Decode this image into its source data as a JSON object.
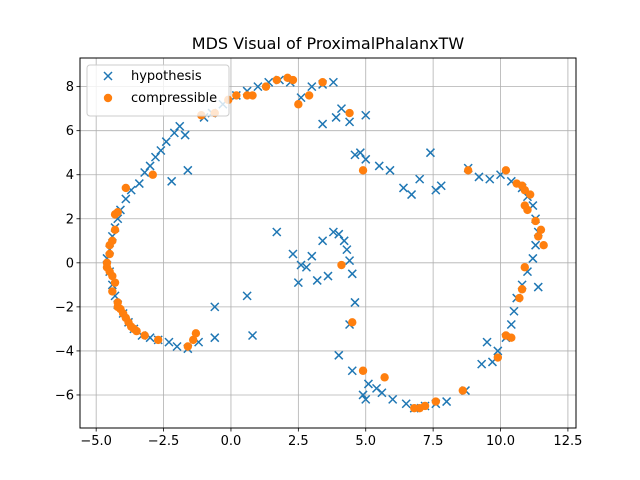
{
  "chart_data": {
    "type": "scatter",
    "title": "MDS Visual of ProximalPhalanxTW",
    "xlabel": "",
    "ylabel": "",
    "xlim": [
      -5.6,
      12.8
    ],
    "ylim": [
      -7.5,
      9.3
    ],
    "xticks": [
      -5.0,
      -2.5,
      0.0,
      2.5,
      5.0,
      7.5,
      10.0,
      12.5
    ],
    "xtick_labels": [
      "−5.0",
      "−2.5",
      "0.0",
      "2.5",
      "5.0",
      "7.5",
      "10.0",
      "12.5"
    ],
    "yticks": [
      -6,
      -4,
      -2,
      0,
      2,
      4,
      6,
      8
    ],
    "ytick_labels": [
      "−6",
      "−4",
      "−2",
      "0",
      "2",
      "4",
      "6",
      "8"
    ],
    "grid": true,
    "legend_position": "top-left",
    "series": [
      {
        "name": "hypothesis",
        "marker": "x",
        "color": "#1f77b4",
        "points": [
          [
            -4.6,
            0.2
          ],
          [
            -4.5,
            0.6
          ],
          [
            -4.5,
            -0.4
          ],
          [
            -4.4,
            1.2
          ],
          [
            -4.4,
            -1.0
          ],
          [
            -4.3,
            1.6
          ],
          [
            -4.3,
            -1.5
          ],
          [
            -4.2,
            2.0
          ],
          [
            -4.2,
            -1.9
          ],
          [
            -4.1,
            2.4
          ],
          [
            -4.0,
            -2.3
          ],
          [
            -3.9,
            2.9
          ],
          [
            -3.8,
            -2.7
          ],
          [
            -3.7,
            3.3
          ],
          [
            -3.6,
            -3.0
          ],
          [
            -3.4,
            3.6
          ],
          [
            -3.3,
            -3.3
          ],
          [
            -3.2,
            4.1
          ],
          [
            -3.0,
            -3.4
          ],
          [
            -3.0,
            4.4
          ],
          [
            -2.8,
            4.8
          ],
          [
            -2.7,
            -3.5
          ],
          [
            -2.6,
            5.1
          ],
          [
            -2.4,
            5.5
          ],
          [
            -2.3,
            -3.6
          ],
          [
            -2.1,
            5.9
          ],
          [
            -2.0,
            -3.8
          ],
          [
            -1.9,
            6.2
          ],
          [
            -1.7,
            5.8
          ],
          [
            -1.6,
            4.2
          ],
          [
            -2.2,
            3.7
          ],
          [
            -1.6,
            -3.9
          ],
          [
            -1.2,
            -3.6
          ],
          [
            -1.0,
            6.6
          ],
          [
            -0.7,
            6.8
          ],
          [
            -0.6,
            -3.4
          ],
          [
            -0.6,
            -2.0
          ],
          [
            -0.3,
            7.2
          ],
          [
            0.2,
            7.6
          ],
          [
            0.6,
            7.8
          ],
          [
            0.8,
            -3.3
          ],
          [
            0.6,
            -1.5
          ],
          [
            1.0,
            8.0
          ],
          [
            1.4,
            8.2
          ],
          [
            1.8,
            8.3
          ],
          [
            2.2,
            8.2
          ],
          [
            2.6,
            7.5
          ],
          [
            3.0,
            8.0
          ],
          [
            3.4,
            8.1
          ],
          [
            3.8,
            8.2
          ],
          [
            3.4,
            6.3
          ],
          [
            3.9,
            6.6
          ],
          [
            4.1,
            7.0
          ],
          [
            4.4,
            6.4
          ],
          [
            4.6,
            4.9
          ],
          [
            4.8,
            5.0
          ],
          [
            5.0,
            6.7
          ],
          [
            5.0,
            4.7
          ],
          [
            5.5,
            4.4
          ],
          [
            5.9,
            4.2
          ],
          [
            6.4,
            3.4
          ],
          [
            6.7,
            3.1
          ],
          [
            7.0,
            3.8
          ],
          [
            7.4,
            5.0
          ],
          [
            7.6,
            3.3
          ],
          [
            7.8,
            3.5
          ],
          [
            8.8,
            4.3
          ],
          [
            9.2,
            3.9
          ],
          [
            9.6,
            3.8
          ],
          [
            10.0,
            4.0
          ],
          [
            10.4,
            3.7
          ],
          [
            10.8,
            3.4
          ],
          [
            11.0,
            3.0
          ],
          [
            11.2,
            2.6
          ],
          [
            11.3,
            2.0
          ],
          [
            11.4,
            1.4
          ],
          [
            11.3,
            0.8
          ],
          [
            11.2,
            0.2
          ],
          [
            11.0,
            -0.4
          ],
          [
            10.8,
            -1.0
          ],
          [
            11.4,
            -1.1
          ],
          [
            10.6,
            -1.6
          ],
          [
            10.5,
            -2.2
          ],
          [
            10.4,
            -2.8
          ],
          [
            10.2,
            -3.4
          ],
          [
            9.9,
            -4.0
          ],
          [
            9.7,
            -4.5
          ],
          [
            9.3,
            -4.6
          ],
          [
            9.5,
            -3.6
          ],
          [
            8.7,
            -5.8
          ],
          [
            8.0,
            -6.3
          ],
          [
            7.6,
            -6.4
          ],
          [
            7.2,
            -6.5
          ],
          [
            6.8,
            -6.6
          ],
          [
            6.5,
            -6.4
          ],
          [
            6.0,
            -6.2
          ],
          [
            5.6,
            -5.9
          ],
          [
            5.4,
            -5.7
          ],
          [
            5.1,
            -5.5
          ],
          [
            4.9,
            -6.0
          ],
          [
            5.0,
            -6.2
          ],
          [
            4.5,
            -4.9
          ],
          [
            4.0,
            -4.2
          ],
          [
            4.4,
            -2.8
          ],
          [
            4.6,
            -1.8
          ],
          [
            4.5,
            -0.5
          ],
          [
            4.4,
            0.1
          ],
          [
            4.3,
            0.6
          ],
          [
            4.2,
            1.0
          ],
          [
            4.0,
            1.3
          ],
          [
            3.8,
            1.4
          ],
          [
            3.4,
            1.0
          ],
          [
            3.0,
            0.3
          ],
          [
            2.8,
            -0.2
          ],
          [
            2.6,
            -0.1
          ],
          [
            2.3,
            0.4
          ],
          [
            1.7,
            1.4
          ],
          [
            3.6,
            -0.6
          ],
          [
            3.2,
            -0.8
          ],
          [
            2.5,
            -0.9
          ]
        ]
      },
      {
        "name": "compressible",
        "marker": "o",
        "color": "#ff7f0e",
        "points": [
          [
            -4.6,
            0.0
          ],
          [
            -4.6,
            -0.2
          ],
          [
            -4.5,
            0.4
          ],
          [
            -4.5,
            0.8
          ],
          [
            -4.5,
            -0.4
          ],
          [
            -4.4,
            1.0
          ],
          [
            -4.4,
            -0.6
          ],
          [
            -4.3,
            2.2
          ],
          [
            -4.3,
            -0.9
          ],
          [
            -4.2,
            2.3
          ],
          [
            -4.2,
            -1.8
          ],
          [
            -4.1,
            -2.1
          ],
          [
            -4.0,
            -2.3
          ],
          [
            -3.9,
            -2.5
          ],
          [
            -3.8,
            -2.7
          ],
          [
            -3.9,
            3.4
          ],
          [
            -3.7,
            -2.9
          ],
          [
            -3.5,
            -3.1
          ],
          [
            -3.2,
            -3.3
          ],
          [
            -2.9,
            4.0
          ],
          [
            -2.7,
            -3.5
          ],
          [
            -1.6,
            -3.8
          ],
          [
            -1.4,
            -3.5
          ],
          [
            -1.3,
            -3.2
          ],
          [
            -0.6,
            6.8
          ],
          [
            0.6,
            7.6
          ],
          [
            0.8,
            7.6
          ],
          [
            1.3,
            8.0
          ],
          [
            1.7,
            8.3
          ],
          [
            2.1,
            8.4
          ],
          [
            2.3,
            8.3
          ],
          [
            2.5,
            7.2
          ],
          [
            2.9,
            7.6
          ],
          [
            3.4,
            8.2
          ],
          [
            4.4,
            6.8
          ],
          [
            4.9,
            4.2
          ],
          [
            8.8,
            4.2
          ],
          [
            10.2,
            4.2
          ],
          [
            10.6,
            3.6
          ],
          [
            10.9,
            3.3
          ],
          [
            11.1,
            3.1
          ],
          [
            10.9,
            2.6
          ],
          [
            11.3,
            1.9
          ],
          [
            11.5,
            1.5
          ],
          [
            11.6,
            0.8
          ],
          [
            10.9,
            -0.2
          ],
          [
            10.8,
            -1.2
          ],
          [
            10.7,
            -1.6
          ],
          [
            10.4,
            -3.4
          ],
          [
            10.2,
            -3.3
          ],
          [
            9.9,
            -4.3
          ],
          [
            8.6,
            -5.8
          ],
          [
            7.6,
            -6.3
          ],
          [
            7.2,
            -6.5
          ],
          [
            7.0,
            -6.6
          ],
          [
            6.8,
            -6.6
          ],
          [
            5.7,
            -5.2
          ],
          [
            4.9,
            -4.9
          ],
          [
            4.5,
            -2.7
          ],
          [
            4.1,
            -0.1
          ],
          [
            11.0,
            2.4
          ],
          [
            11.4,
            1.2
          ],
          [
            10.8,
            3.5
          ],
          [
            -4.3,
            1.5
          ],
          [
            -4.4,
            -1.3
          ],
          [
            -4.2,
            -2.0
          ],
          [
            -3.6,
            -3.0
          ],
          [
            -1.1,
            6.7
          ],
          [
            0.2,
            7.6
          ],
          [
            -0.1,
            7.4
          ]
        ]
      }
    ]
  }
}
